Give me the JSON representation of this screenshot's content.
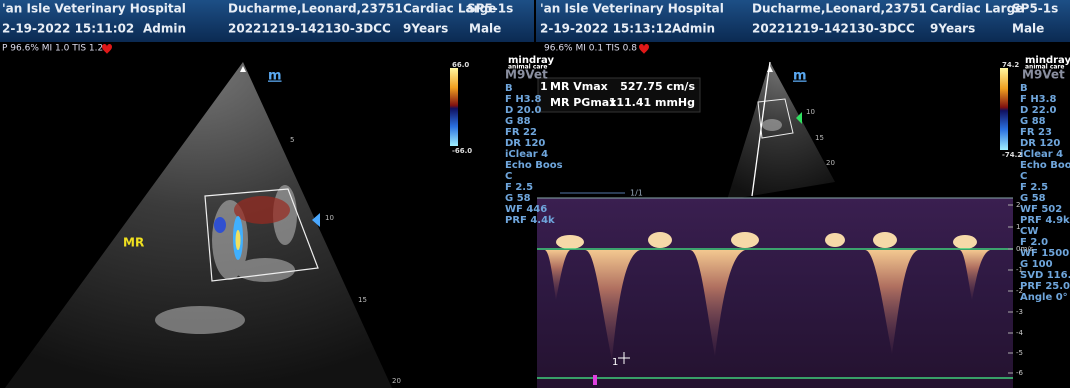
{
  "panels": [
    {
      "header": {
        "hospital": "'an Isle Veterinary Hospital",
        "patient": "Ducharme,Leonard,23751",
        "preset": "Cardiac Large",
        "probe": "SP5-1s",
        "datetime": "2-19-2022 15:11:02",
        "operator": "Admin",
        "exam_id": "20221219-142130-3DCC",
        "age": "9Years",
        "sex": "Male"
      },
      "status": "P 96.6% MI 1.0 TIS 1.2",
      "logo": {
        "brand": "mindray",
        "sub": "animal care",
        "model": "M9Vet"
      },
      "params": [
        "B",
        "F H3.8",
        "D 20.0",
        "G 88",
        "FR 22",
        "DR 120",
        "iClear 4",
        "Echo Boos",
        "C",
        "F 2.5",
        "G 58",
        "WF 446",
        "PRF 4.4k"
      ],
      "colorbar": {
        "max": "66.0",
        "min": "-66.0"
      },
      "depth_marks": [
        "5",
        "10",
        "15",
        "20"
      ],
      "label": "MR",
      "marker": "m"
    },
    {
      "header": {
        "hospital": "'an Isle Veterinary Hospital",
        "patient": "Ducharme,Leonard,23751",
        "preset": "Cardiac Large",
        "probe": "SP5-1s",
        "datetime": "2-19-2022 15:13:12",
        "operator": "Admin",
        "exam_id": "20221219-142130-3DCC",
        "age": "9Years",
        "sex": "Male"
      },
      "status": "96.6% MI 0.1 TIS 0.8",
      "logo": {
        "brand": "mindray",
        "sub": "animal care",
        "model": "M9Vet"
      },
      "params": [
        "B",
        "F H3.8",
        "D 22.0",
        "G 88",
        "FR 23",
        "DR 120",
        "iClear 4",
        "Echo Boos",
        "C",
        "F 2.5",
        "G 58",
        "WF 502",
        "PRF 4.9k",
        "CW",
        "F 2.0",
        "WF 1500",
        "G 100",
        "SVD 116.2",
        "PRF 25.0k",
        "Angle 0°"
      ],
      "colorbar": {
        "max": "74.2",
        "min": "-74.2"
      },
      "depth_marks": [
        "10",
        "15",
        "20"
      ],
      "marker": "m",
      "measurements": [
        {
          "index": "1",
          "name": "MR Vmax",
          "value": "527.75 cm/s"
        },
        {
          "name": "MR PGmax",
          "value": "111.41 mmHg"
        }
      ],
      "doppler": {
        "page": "1/1",
        "scale": [
          "2",
          "1",
          "0m/s",
          "-1",
          "-2",
          "-3",
          "-4",
          "-5",
          "-6"
        ],
        "cursor": "1"
      }
    }
  ]
}
